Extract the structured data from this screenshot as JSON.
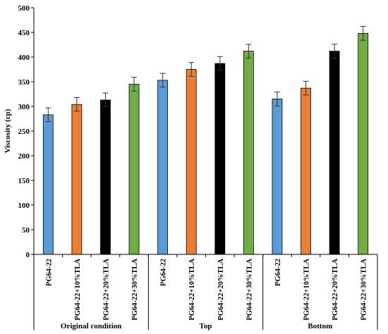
{
  "chart_data": {
    "type": "bar",
    "title": "",
    "xlabel": "",
    "ylabel": "Viscosity (cp)",
    "ylim": [
      0,
      500
    ],
    "yticks": [
      0,
      50,
      100,
      150,
      200,
      250,
      300,
      350,
      400,
      450,
      500
    ],
    "grid": false,
    "legend": "none",
    "groups": [
      {
        "name": "Original condition",
        "bars": [
          {
            "label": "PG64-22",
            "value": 283,
            "error": 14,
            "color": "#5b9bd5"
          },
          {
            "label": "PG64-22+10%TLA",
            "value": 304,
            "error": 14,
            "color": "#ed7d31"
          },
          {
            "label": "PG64-22+20%TLA",
            "value": 313,
            "error": 14,
            "color": "#000000"
          },
          {
            "label": "PG64-22+30%TLA",
            "value": 345,
            "error": 14,
            "color": "#70ad47"
          }
        ]
      },
      {
        "name": "Top",
        "bars": [
          {
            "label": "PG64-22",
            "value": 353,
            "error": 14,
            "color": "#5b9bd5"
          },
          {
            "label": "PG64-22+10%TLA",
            "value": 375,
            "error": 14,
            "color": "#ed7d31"
          },
          {
            "label": "PG64-22+20%TLA",
            "value": 387,
            "error": 14,
            "color": "#000000"
          },
          {
            "label": "PG64-22+30%TLA",
            "value": 412,
            "error": 14,
            "color": "#70ad47"
          }
        ]
      },
      {
        "name": "Bottom",
        "bars": [
          {
            "label": "PG64-22",
            "value": 315,
            "error": 14,
            "color": "#5b9bd5"
          },
          {
            "label": "PG64-22+10%TLA",
            "value": 337,
            "error": 14,
            "color": "#ed7d31"
          },
          {
            "label": "PG64-22+20%TLA",
            "value": 412,
            "error": 14,
            "color": "#000000"
          },
          {
            "label": "PG64-22+30%TLA",
            "value": 448,
            "error": 14,
            "color": "#70ad47"
          }
        ]
      }
    ]
  }
}
